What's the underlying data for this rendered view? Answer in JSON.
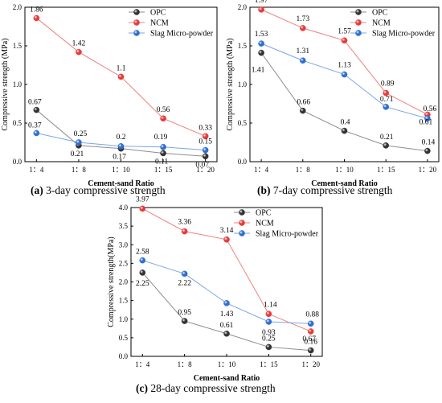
{
  "chart_data": [
    {
      "type": "line",
      "panel_letter": "(a)",
      "caption": "3-day compressive strength",
      "xlabel": "Cement-sand Ratio",
      "ylabel": "Compressive strength (MPa)",
      "categories": [
        "1：4",
        "1：8",
        "1：10",
        "1：15",
        "1：20"
      ],
      "ylim": [
        0,
        2.0
      ],
      "yticks": [
        "0.0",
        "0.5",
        "1.0",
        "1.5",
        "2.0"
      ],
      "legend_position": "top-right",
      "series": [
        {
          "name": "OPC",
          "color": "#333333",
          "line_color": "#8c8c8c",
          "values": [
            0.67,
            0.21,
            0.17,
            0.11,
            0.07
          ]
        },
        {
          "name": "NCM",
          "color": "#e8393a",
          "line_color": "#f08080",
          "values": [
            1.86,
            1.42,
            1.1,
            0.56,
            0.33
          ]
        },
        {
          "name": "Slag Micro-powder",
          "color": "#2d6fd1",
          "line_color": "#7aa6e6",
          "values": [
            0.37,
            0.25,
            0.2,
            0.19,
            0.15
          ]
        }
      ],
      "point_labels": [
        [
          "0.67",
          "0.21",
          "0.17",
          "0.11",
          "0.07"
        ],
        [
          "1.86",
          "1.42",
          "1.1",
          "0.56",
          "0.33"
        ],
        [
          "0.37",
          "0.25",
          "0.2",
          "0.19",
          "0.15"
        ]
      ]
    },
    {
      "type": "line",
      "panel_letter": "(b)",
      "caption": "7-day compressive strength",
      "xlabel": "Cement-sand Ratio",
      "ylabel": "Compressive strength (MPa)",
      "categories": [
        "1：4",
        "1：8",
        "1：10",
        "1：15",
        "1：20"
      ],
      "ylim": [
        0,
        2.0
      ],
      "yticks": [
        "0.0",
        "0.5",
        "1.0",
        "1.5",
        "2.0"
      ],
      "legend_position": "top-right",
      "series": [
        {
          "name": "OPC",
          "color": "#333333",
          "line_color": "#8c8c8c",
          "values": [
            1.41,
            0.66,
            0.4,
            0.21,
            0.14
          ]
        },
        {
          "name": "NCM",
          "color": "#e8393a",
          "line_color": "#f08080",
          "values": [
            1.97,
            1.73,
            1.57,
            0.89,
            0.61
          ]
        },
        {
          "name": "Slag Micro-powder",
          "color": "#2d6fd1",
          "line_color": "#7aa6e6",
          "values": [
            1.53,
            1.31,
            1.13,
            0.71,
            0.56
          ]
        }
      ],
      "point_labels": [
        [
          "1.41",
          "0.66",
          "0.4",
          "0.21",
          "0.14"
        ],
        [
          "1.97",
          "1.73",
          "1.57",
          "0.89",
          "0.61"
        ],
        [
          "1.53",
          "1.31",
          "1.13",
          "0.71",
          "0.56"
        ]
      ]
    },
    {
      "type": "line",
      "panel_letter": "(c)",
      "caption": "28-day compressive strength",
      "xlabel": "Cement-sand Ratio",
      "ylabel": "Compressive strength(MPa)",
      "categories": [
        "1：4",
        "1：8",
        "1：10",
        "1：15",
        "1：20"
      ],
      "ylim": [
        0,
        4.0
      ],
      "yticks": [
        "0.0",
        "0.5",
        "1.0",
        "1.5",
        "2.0",
        "2.5",
        "3.0",
        "3.5",
        "4.0"
      ],
      "legend_position": "top-right",
      "series": [
        {
          "name": "OPC",
          "color": "#333333",
          "line_color": "#8c8c8c",
          "values": [
            2.25,
            0.95,
            0.61,
            0.25,
            0.16
          ]
        },
        {
          "name": "NCM",
          "color": "#e8393a",
          "line_color": "#f08080",
          "values": [
            3.97,
            3.36,
            3.14,
            1.14,
            0.67
          ]
        },
        {
          "name": "Slag Micro-powder",
          "color": "#2d6fd1",
          "line_color": "#7aa6e6",
          "values": [
            2.58,
            2.22,
            1.43,
            0.93,
            0.88
          ]
        }
      ],
      "point_labels": [
        [
          "2.25",
          "0.95",
          "0.61",
          "0.25",
          "0.16"
        ],
        [
          "3.97",
          "3.36",
          "3.14",
          "1.14",
          "0.67"
        ],
        [
          "2.58",
          "2.22",
          "1.43",
          "0.93",
          "0.88"
        ]
      ]
    }
  ]
}
